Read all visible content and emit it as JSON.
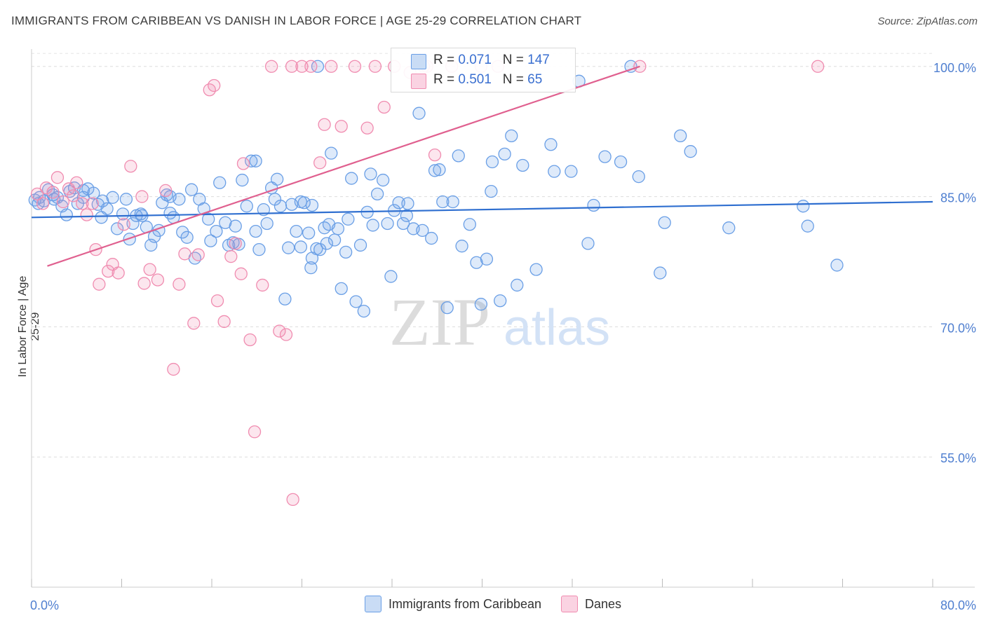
{
  "title": "IMMIGRANTS FROM CARIBBEAN VS DANISH IN LABOR FORCE | AGE 25-29 CORRELATION CHART",
  "source": "Source: ZipAtlas.com",
  "colors": {
    "blue": "#6a9fe6",
    "blue_line": "#2f6fd0",
    "pink": "#f08cb0",
    "pink_line": "#e0608f",
    "tick": "#4f7fd0"
  },
  "stats": [
    {
      "r_label": "R = ",
      "r": "0.071",
      "n_label": "N = ",
      "n": "147"
    },
    {
      "r_label": "R = ",
      "r": "0.501",
      "n_label": "N = ",
      "n": " 65"
    }
  ],
  "chart_data": {
    "type": "scatter",
    "xlabel": "",
    "ylabel": "In Labor Force | Age 25-29",
    "xlim": [
      0,
      80
    ],
    "ylim": [
      40,
      102
    ],
    "x_tick_labels": [
      "0.0%",
      "80.0%"
    ],
    "y_ticks": [
      55,
      70,
      85,
      100
    ],
    "y_tick_labels": [
      "55.0%",
      "70.0%",
      "85.0%",
      "100.0%"
    ],
    "grid": true,
    "series": [
      {
        "name": "Immigrants from Caribbean",
        "color": "#6a9fe6",
        "trend": [
          [
            0,
            82.6
          ],
          [
            80,
            84.4
          ]
        ],
        "points": [
          [
            0.3,
            84.6
          ],
          [
            0.7,
            84.9
          ],
          [
            1.1,
            84.5
          ],
          [
            1.5,
            85.8
          ],
          [
            1.9,
            85.2
          ],
          [
            2.3,
            84.9
          ],
          [
            2.7,
            83.9
          ],
          [
            3.1,
            82.9
          ],
          [
            3.4,
            85.6
          ],
          [
            3.8,
            86.0
          ],
          [
            4.1,
            84.2
          ],
          [
            4.6,
            84.9
          ],
          [
            5.0,
            85.9
          ],
          [
            5.5,
            85.4
          ],
          [
            5.9,
            84.1
          ],
          [
            6.2,
            82.6
          ],
          [
            6.7,
            83.6
          ],
          [
            7.2,
            84.9
          ],
          [
            7.6,
            81.3
          ],
          [
            8.1,
            83.0
          ],
          [
            8.4,
            84.7
          ],
          [
            8.7,
            80.1
          ],
          [
            9.0,
            81.9
          ],
          [
            9.3,
            82.8
          ],
          [
            9.8,
            82.8
          ],
          [
            10.2,
            81.5
          ],
          [
            10.6,
            79.4
          ],
          [
            10.9,
            80.4
          ],
          [
            11.3,
            81.1
          ],
          [
            11.6,
            84.3
          ],
          [
            12.0,
            85.2
          ],
          [
            12.3,
            83.1
          ],
          [
            12.6,
            82.6
          ],
          [
            13.1,
            84.7
          ],
          [
            13.4,
            80.9
          ],
          [
            13.8,
            80.3
          ],
          [
            14.2,
            85.8
          ],
          [
            14.5,
            77.9
          ],
          [
            14.9,
            84.7
          ],
          [
            15.3,
            83.6
          ],
          [
            15.7,
            82.4
          ],
          [
            15.9,
            79.9
          ],
          [
            16.4,
            81.0
          ],
          [
            16.7,
            86.6
          ],
          [
            17.2,
            82.0
          ],
          [
            17.5,
            79.4
          ],
          [
            17.9,
            79.7
          ],
          [
            18.1,
            81.6
          ],
          [
            18.4,
            79.5
          ],
          [
            18.7,
            86.9
          ],
          [
            19.1,
            83.9
          ],
          [
            19.5,
            89.1
          ],
          [
            19.9,
            81.0
          ],
          [
            20.2,
            78.9
          ],
          [
            20.6,
            83.5
          ],
          [
            20.9,
            81.9
          ],
          [
            21.3,
            86.0
          ],
          [
            21.6,
            84.7
          ],
          [
            21.8,
            87.0
          ],
          [
            22.1,
            83.9
          ],
          [
            22.5,
            73.2
          ],
          [
            22.8,
            79.1
          ],
          [
            23.1,
            84.1
          ],
          [
            23.5,
            81.0
          ],
          [
            23.9,
            79.2
          ],
          [
            24.2,
            84.3
          ],
          [
            24.6,
            80.8
          ],
          [
            24.9,
            77.9
          ],
          [
            24.8,
            76.8
          ],
          [
            25.3,
            79.0
          ],
          [
            25.6,
            78.9
          ],
          [
            26.0,
            81.4
          ],
          [
            26.2,
            79.6
          ],
          [
            26.6,
            90.0
          ],
          [
            26.9,
            80.0
          ],
          [
            27.2,
            81.3
          ],
          [
            27.5,
            74.4
          ],
          [
            27.9,
            78.6
          ],
          [
            28.1,
            82.4
          ],
          [
            28.4,
            87.1
          ],
          [
            28.8,
            72.9
          ],
          [
            29.2,
            79.4
          ],
          [
            29.5,
            71.8
          ],
          [
            29.8,
            83.2
          ],
          [
            30.1,
            87.6
          ],
          [
            30.3,
            81.7
          ],
          [
            30.7,
            85.3
          ],
          [
            31.2,
            86.9
          ],
          [
            31.6,
            81.9
          ],
          [
            31.9,
            75.8
          ],
          [
            32.2,
            83.4
          ],
          [
            32.6,
            84.3
          ],
          [
            33.0,
            81.9
          ],
          [
            33.3,
            82.8
          ],
          [
            33.9,
            81.3
          ],
          [
            34.4,
            94.6
          ],
          [
            34.7,
            81.1
          ],
          [
            35.5,
            80.2
          ],
          [
            35.8,
            88.0
          ],
          [
            36.2,
            88.1
          ],
          [
            36.5,
            84.4
          ],
          [
            36.9,
            72.2
          ],
          [
            37.4,
            84.4
          ],
          [
            37.9,
            89.7
          ],
          [
            38.2,
            79.3
          ],
          [
            38.9,
            81.8
          ],
          [
            39.5,
            77.4
          ],
          [
            39.9,
            72.6
          ],
          [
            40.4,
            77.8
          ],
          [
            40.8,
            85.6
          ],
          [
            40.9,
            89.0
          ],
          [
            41.6,
            73.0
          ],
          [
            42.0,
            89.9
          ],
          [
            42.6,
            92.0
          ],
          [
            43.1,
            74.8
          ],
          [
            43.6,
            88.6
          ],
          [
            44.8,
            76.6
          ],
          [
            46.1,
            91.0
          ],
          [
            46.4,
            87.9
          ],
          [
            47.9,
            87.9
          ],
          [
            48.6,
            98.3
          ],
          [
            49.4,
            79.6
          ],
          [
            49.9,
            84.0
          ],
          [
            50.9,
            89.6
          ],
          [
            52.3,
            89.0
          ],
          [
            53.2,
            100.0
          ],
          [
            53.9,
            87.3
          ],
          [
            55.8,
            76.2
          ],
          [
            56.2,
            82.0
          ],
          [
            57.6,
            92.0
          ],
          [
            58.5,
            90.2
          ],
          [
            61.9,
            81.4
          ],
          [
            68.5,
            83.9
          ],
          [
            68.9,
            81.6
          ],
          [
            71.5,
            77.1
          ],
          [
            4.6,
            85.7
          ],
          [
            6.3,
            84.5
          ],
          [
            2.0,
            84.7
          ],
          [
            0.6,
            84.2
          ],
          [
            19.9,
            89.1
          ],
          [
            33.4,
            84.2
          ],
          [
            12.3,
            85.0
          ],
          [
            24.9,
            84.0
          ],
          [
            25.4,
            100.0
          ],
          [
            9.7,
            83.0
          ],
          [
            26.4,
            81.8
          ],
          [
            23.9,
            84.4
          ]
        ]
      },
      {
        "name": "Danes",
        "color": "#f08cb0",
        "trend": [
          [
            1.4,
            77.0
          ],
          [
            54.0,
            100.0
          ]
        ],
        "points": [
          [
            0.5,
            85.3
          ],
          [
            1.0,
            84.2
          ],
          [
            1.3,
            86.0
          ],
          [
            1.9,
            85.5
          ],
          [
            2.3,
            87.2
          ],
          [
            2.8,
            84.4
          ],
          [
            3.3,
            85.9
          ],
          [
            3.7,
            85.1
          ],
          [
            4.0,
            86.6
          ],
          [
            4.5,
            84.2
          ],
          [
            4.9,
            82.9
          ],
          [
            5.4,
            84.2
          ],
          [
            5.7,
            78.9
          ],
          [
            6.0,
            74.9
          ],
          [
            6.8,
            76.4
          ],
          [
            7.2,
            77.2
          ],
          [
            7.7,
            76.2
          ],
          [
            8.2,
            81.8
          ],
          [
            8.8,
            88.5
          ],
          [
            9.8,
            85.0
          ],
          [
            10.0,
            75.0
          ],
          [
            10.5,
            76.6
          ],
          [
            11.2,
            75.4
          ],
          [
            11.9,
            85.7
          ],
          [
            12.6,
            65.1
          ],
          [
            13.1,
            74.9
          ],
          [
            13.6,
            78.4
          ],
          [
            14.4,
            70.4
          ],
          [
            14.8,
            78.3
          ],
          [
            15.8,
            97.3
          ],
          [
            16.2,
            97.8
          ],
          [
            16.5,
            73.0
          ],
          [
            17.1,
            70.6
          ],
          [
            17.7,
            78.1
          ],
          [
            18.1,
            79.6
          ],
          [
            18.6,
            76.1
          ],
          [
            18.8,
            88.8
          ],
          [
            19.4,
            68.5
          ],
          [
            19.8,
            57.9
          ],
          [
            20.5,
            74.8
          ],
          [
            21.3,
            100.0
          ],
          [
            22.0,
            69.5
          ],
          [
            22.6,
            69.1
          ],
          [
            23.1,
            100.0
          ],
          [
            23.2,
            50.1
          ],
          [
            24.0,
            100.0
          ],
          [
            24.8,
            100.0
          ],
          [
            25.6,
            88.9
          ],
          [
            26.0,
            93.3
          ],
          [
            26.6,
            100.0
          ],
          [
            27.5,
            93.1
          ],
          [
            28.7,
            100.0
          ],
          [
            29.8,
            92.9
          ],
          [
            30.5,
            100.0
          ],
          [
            31.3,
            95.3
          ],
          [
            32.2,
            100.0
          ],
          [
            33.6,
            99.3
          ],
          [
            34.8,
            100.0
          ],
          [
            35.1,
            100.0
          ],
          [
            35.8,
            89.8
          ],
          [
            37.3,
            100.0
          ],
          [
            39.9,
            100.0
          ],
          [
            41.4,
            100.0
          ],
          [
            54.0,
            100.0
          ],
          [
            69.8,
            100.0
          ]
        ]
      }
    ]
  },
  "watermark": {
    "zip": "ZIP",
    "atlas": "atlas"
  }
}
